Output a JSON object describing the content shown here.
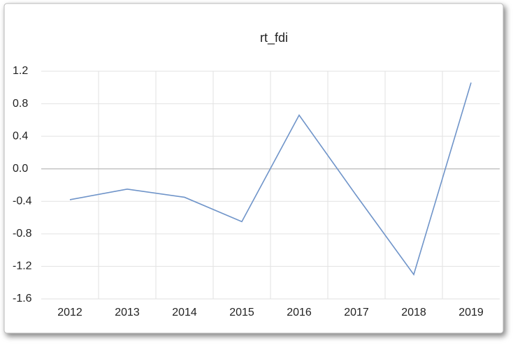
{
  "chart_data": {
    "type": "line",
    "title": "rt_fdi",
    "categories": [
      "2012",
      "2013",
      "2014",
      "2015",
      "2016",
      "2017",
      "2018",
      "2019"
    ],
    "series": [
      {
        "name": "rt_fdi",
        "color": "#6f94c9",
        "values": [
          -0.38,
          -0.25,
          -0.35,
          -0.65,
          0.66,
          -0.33,
          -1.3,
          1.06
        ]
      }
    ],
    "ylim": [
      -1.6,
      1.2
    ],
    "yticks": [
      -1.6,
      -1.2,
      -0.8,
      -0.4,
      {
        "value": 0,
        "label": "0.0"
      },
      0.4,
      0.8,
      1.2
    ],
    "grid": true
  }
}
